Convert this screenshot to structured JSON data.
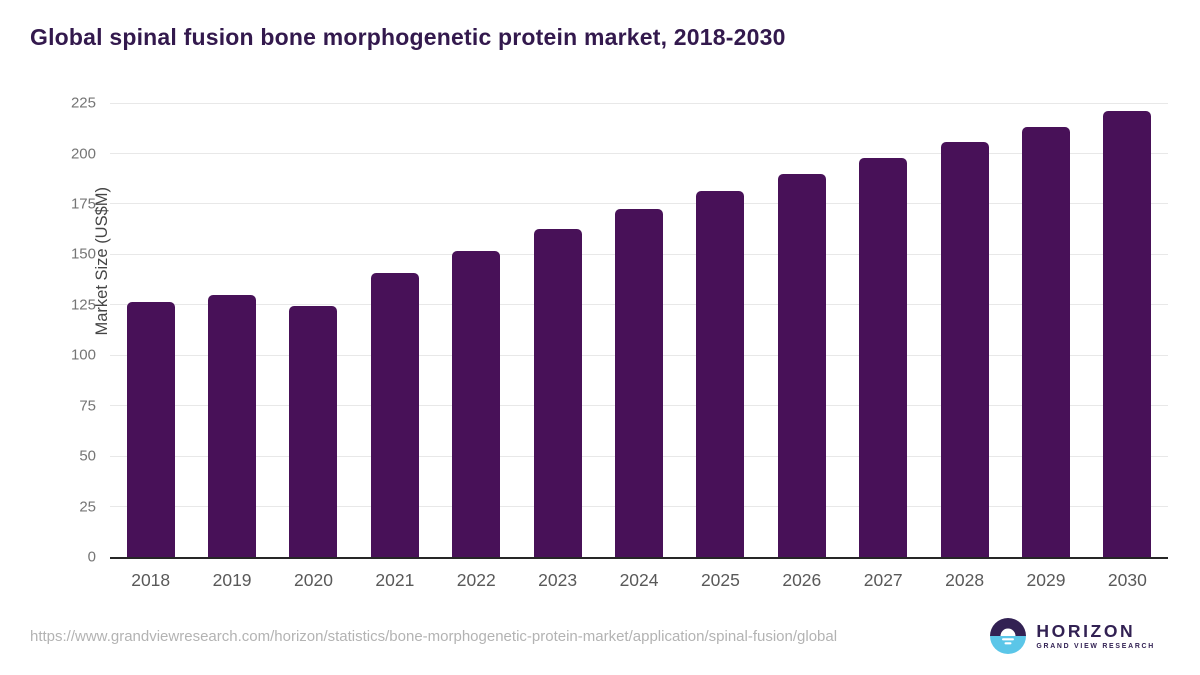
{
  "page": {
    "title": "Global spinal fusion bone morphogenetic protein market, 2018-2030",
    "source_url": "https://www.grandviewresearch.com/horizon/statistics/bone-morphogenetic-protein-market/application/spinal-fusion/global"
  },
  "logo": {
    "name": "HORIZON",
    "subtitle": "GRAND VIEW RESEARCH"
  },
  "colors": {
    "bar": "#481158",
    "title_text": "#33194D",
    "axis_line": "#262626",
    "gridline": "#E8E8E8",
    "y_tick_label": "#757575",
    "x_tick_label": "#595959",
    "url_text": "#B3B3B3",
    "logo_purple": "#322153",
    "logo_blue": "#5BC6E8"
  },
  "chart_data": {
    "type": "bar",
    "title": "Global spinal fusion bone morphogenetic protein market, 2018-2030",
    "xlabel": "",
    "ylabel": "Market Size (US$M)",
    "categories": [
      "2018",
      "2019",
      "2020",
      "2021",
      "2022",
      "2023",
      "2024",
      "2025",
      "2026",
      "2027",
      "2028",
      "2029",
      "2030"
    ],
    "values": [
      126.5,
      129.8,
      124.5,
      140.9,
      151.7,
      162.4,
      172.4,
      181.3,
      190.0,
      197.7,
      205.5,
      213.2,
      220.9
    ],
    "yticks": [
      0,
      25,
      50,
      75,
      100,
      125,
      150,
      175,
      200,
      225
    ],
    "ylim": [
      0,
      225
    ],
    "grid": true,
    "legend": false,
    "bar_color": "#481158"
  }
}
